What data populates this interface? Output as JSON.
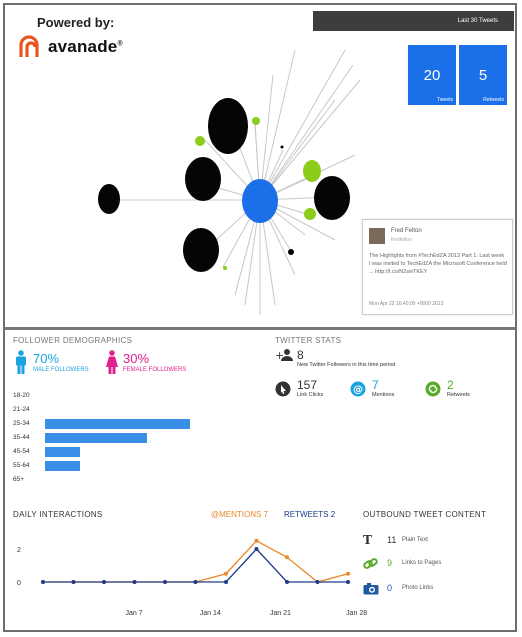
{
  "header": {
    "powered_by": "Powered by:",
    "brand": "avanade",
    "brand_mark": "®",
    "brand_color": "#e8561f",
    "range": "Last 30 Tweets"
  },
  "tiles": [
    {
      "value": "20",
      "label": "Tweets"
    },
    {
      "value": "5",
      "label": "Retweets"
    }
  ],
  "tweet_card": {
    "name": "Fred Felton",
    "handle": "fredfelton",
    "text": "The Highlights from #TechEdZA 2013 Part 1: Last week I was invited to TechEdZA the Microsoft Conference held ... http://t.co/N2swTKEY",
    "time": "Mon Apr 22 16:40:00 +0000 2013"
  },
  "demographics": {
    "title": "FOLLOWER DEMOGRAPHICS",
    "male_pct": "70%",
    "male_label": "MALE FOLLOWERS",
    "male_color": "#1aa3e0",
    "female_pct": "30%",
    "female_label": "FEMALE FOLLOWERS",
    "female_color": "#e0208c",
    "male_icon": "male-icon",
    "female_icon": "female-icon"
  },
  "age_groups": [
    {
      "label": "18-20",
      "value": 0
    },
    {
      "label": "21-24",
      "value": 0
    },
    {
      "label": "25-34",
      "value": 1.0
    },
    {
      "label": "35-44",
      "value": 0.7
    },
    {
      "label": "45-54",
      "value": 0.24
    },
    {
      "label": "55-64",
      "value": 0.24
    },
    {
      "label": "65+",
      "value": 0
    }
  ],
  "twitter_stats": {
    "title": "TWITTER STATS",
    "new_followers": "8",
    "new_followers_label": "New Twitter Followers in this time period",
    "link_clicks": "157",
    "link_clicks_label": "Link Clicks",
    "mentions": "7",
    "mentions_label": "Mentions",
    "retweets": "2",
    "retweets_label": "Retweets"
  },
  "daily": {
    "title": "DAILY INTERACTIONS",
    "mentions_label": "@MENTIONS",
    "mentions_total": "7",
    "retweets_label": "RETWEETS",
    "retweets_total": "2",
    "y_ticks": [
      "2",
      "0"
    ],
    "x_ticks": [
      "Jan 7",
      "Jan 14",
      "Jan 21",
      "Jan 28"
    ]
  },
  "outbound": {
    "title": "OUTBOUND TWEET CONTENT",
    "items": [
      {
        "icon": "text-icon",
        "count": "11",
        "label": "Plain Text"
      },
      {
        "icon": "link-icon",
        "count": "9",
        "label": "Links to Pages"
      },
      {
        "icon": "camera-icon",
        "count": "0",
        "label": "Photo Links"
      }
    ]
  },
  "chart_data": {
    "type": "line",
    "title": "DAILY INTERACTIONS",
    "xlabel": "",
    "ylabel": "",
    "x": [
      "",
      "",
      "",
      "",
      "",
      "",
      "",
      "",
      "",
      "",
      ""
    ],
    "x_tick_labels": [
      "Jan 7",
      "Jan 14",
      "Jan 21",
      "Jan 28"
    ],
    "ylim": [
      0,
      3
    ],
    "series": [
      {
        "name": "@MENTIONS",
        "color": "#e8892a",
        "values": [
          0,
          0,
          0,
          0,
          0,
          0,
          0.5,
          2.5,
          1.5,
          0,
          0.5
        ]
      },
      {
        "name": "RETWEETS",
        "color": "#1f3c8a",
        "values": [
          0,
          0,
          0,
          0,
          0,
          0,
          0,
          2,
          0,
          0,
          0
        ]
      }
    ]
  }
}
